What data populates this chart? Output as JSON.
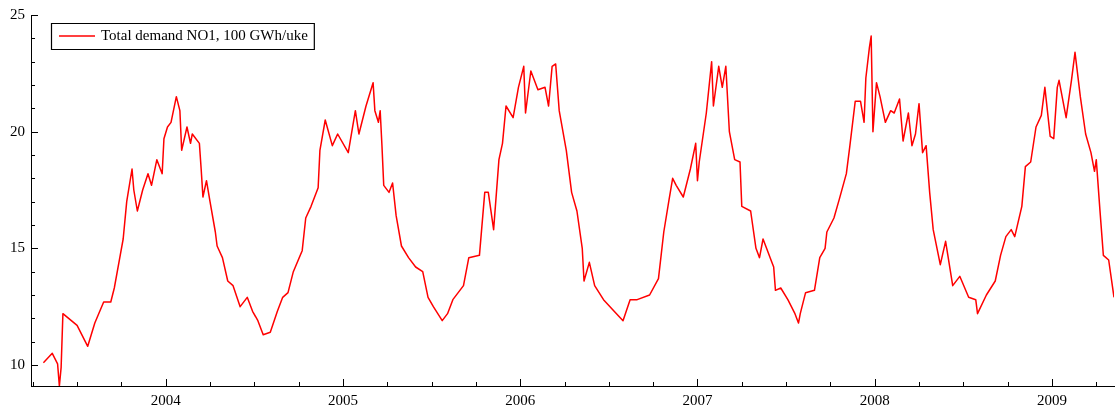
{
  "chart_data": {
    "type": "line",
    "series": [
      {
        "name": "Total demand NO1, 100 GWh/uke",
        "color": "#ff0000",
        "x": [
          2003.31,
          2003.36,
          2003.39,
          2003.4,
          2003.41,
          2003.42,
          2003.5,
          2003.56,
          2003.6,
          2003.65,
          2003.69,
          2003.71,
          2003.76,
          2003.78,
          2003.81,
          2003.82,
          2003.84,
          2003.87,
          2003.9,
          2003.92,
          2003.95,
          2003.98,
          2003.99,
          2004.01,
          2004.03,
          2004.06,
          2004.08,
          2004.09,
          2004.12,
          2004.14,
          2004.15,
          2004.19,
          2004.2,
          2004.21,
          2004.23,
          2004.25,
          2004.28,
          2004.29,
          2004.32,
          2004.35,
          2004.38,
          2004.42,
          2004.46,
          2004.49,
          2004.52,
          2004.55,
          2004.59,
          2004.63,
          2004.66,
          2004.69,
          2004.72,
          2004.77,
          2004.79,
          2004.82,
          2004.86,
          2004.87,
          2004.9,
          2004.94,
          2004.97,
          2005.03,
          2005.07,
          2005.09,
          2005.13,
          2005.17,
          2005.18,
          2005.2,
          2005.21,
          2005.22,
          2005.23,
          2005.26,
          2005.28,
          2005.3,
          2005.33,
          2005.37,
          2005.41,
          2005.45,
          2005.48,
          2005.51,
          2005.56,
          2005.59,
          2005.62,
          2005.68,
          2005.71,
          2005.77,
          2005.8,
          2005.82,
          2005.85,
          2005.88,
          2005.9,
          2005.92,
          2005.96,
          2005.99,
          2006.02,
          2006.03,
          2006.06,
          2006.1,
          2006.14,
          2006.16,
          2006.18,
          2006.2,
          2006.22,
          2006.26,
          2006.29,
          2006.32,
          2006.35,
          2006.36,
          2006.39,
          2006.42,
          2006.47,
          2006.53,
          2006.58,
          2006.62,
          2006.66,
          2006.73,
          2006.78,
          2006.81,
          2006.84,
          2006.86,
          2006.88,
          2006.92,
          2006.96,
          2006.99,
          2007.0,
          2007.01,
          2007.05,
          2007.08,
          2007.09,
          2007.12,
          2007.14,
          2007.16,
          2007.18,
          2007.21,
          2007.24,
          2007.25,
          2007.3,
          2007.33,
          2007.35,
          2007.37,
          2007.41,
          2007.43,
          2007.44,
          2007.47,
          2007.51,
          2007.55,
          2007.57,
          2007.58,
          2007.61,
          2007.66,
          2007.69,
          2007.72,
          2007.73,
          2007.77,
          2007.8,
          2007.84,
          2007.86,
          2007.89,
          2007.92,
          2007.94,
          2007.95,
          2007.97,
          2007.98,
          2007.99,
          2008.01,
          2008.03,
          2008.06,
          2008.09,
          2008.11,
          2008.14,
          2008.16,
          2008.19,
          2008.21,
          2008.23,
          2008.25,
          2008.27,
          2008.29,
          2008.31,
          2008.33,
          2008.37,
          2008.4,
          2008.44,
          2008.48,
          2008.53,
          2008.57,
          2008.58,
          2008.63,
          2008.68,
          2008.71,
          2008.74,
          2008.77,
          2008.79,
          2008.83,
          2008.85,
          2008.88,
          2008.91,
          2008.94,
          2008.96,
          2008.99,
          2009.01,
          2009.03,
          2009.04,
          2009.08,
          2009.11,
          2009.13,
          2009.16,
          2009.19,
          2009.22,
          2009.24,
          2009.25,
          2009.27,
          2009.29,
          2009.32,
          2009.35
        ],
        "values": [
          10.1,
          10.5,
          10.05,
          9.1,
          9.9,
          12.2,
          11.7,
          10.8,
          11.8,
          12.7,
          12.7,
          13.3,
          15.4,
          17.0,
          18.4,
          17.5,
          16.6,
          17.5,
          18.2,
          17.7,
          18.8,
          18.2,
          19.7,
          20.2,
          20.4,
          21.5,
          20.9,
          19.2,
          20.2,
          19.5,
          19.9,
          19.5,
          18.4,
          17.2,
          17.9,
          17.0,
          15.7,
          15.1,
          14.6,
          13.6,
          13.4,
          12.5,
          12.9,
          12.3,
          11.9,
          11.3,
          11.4,
          12.3,
          12.9,
          13.1,
          14.0,
          14.9,
          16.3,
          16.8,
          17.6,
          19.2,
          20.5,
          19.4,
          19.9,
          19.1,
          20.9,
          19.9,
          21.1,
          22.1,
          20.9,
          20.4,
          20.9,
          19.4,
          17.7,
          17.4,
          17.8,
          16.4,
          15.1,
          14.6,
          14.2,
          14.0,
          12.9,
          12.5,
          11.9,
          12.2,
          12.8,
          13.4,
          14.6,
          14.7,
          17.4,
          17.4,
          15.8,
          18.8,
          19.5,
          21.1,
          20.6,
          21.9,
          22.8,
          20.8,
          22.6,
          21.8,
          21.9,
          21.1,
          22.8,
          22.9,
          20.9,
          19.2,
          17.4,
          16.6,
          15.0,
          13.6,
          14.4,
          13.4,
          12.8,
          12.3,
          11.9,
          12.8,
          12.8,
          13.0,
          13.7,
          15.7,
          17.1,
          18.0,
          17.7,
          17.2,
          18.4,
          19.5,
          17.9,
          18.7,
          20.8,
          23.0,
          21.1,
          22.8,
          21.9,
          22.8,
          20.0,
          18.8,
          18.7,
          16.8,
          16.6,
          15.0,
          14.6,
          15.4,
          14.6,
          14.2,
          13.2,
          13.3,
          12.8,
          12.2,
          11.8,
          12.2,
          13.1,
          13.2,
          14.6,
          15.0,
          15.7,
          16.3,
          17.1,
          18.2,
          19.4,
          21.3,
          21.3,
          20.4,
          22.3,
          23.6,
          24.1,
          20.0,
          22.1,
          21.5,
          20.4,
          20.9,
          20.8,
          21.4,
          19.6,
          20.8,
          19.4,
          19.9,
          21.2,
          19.1,
          19.4,
          17.4,
          15.8,
          14.3,
          15.3,
          13.4,
          13.8,
          12.9,
          12.8,
          12.2,
          13.0,
          13.6,
          14.7,
          15.5,
          15.8,
          15.5,
          16.8,
          18.5,
          18.7,
          20.2,
          20.7,
          21.9,
          19.8,
          19.7,
          21.9,
          22.2,
          20.6,
          22.2,
          23.4,
          21.5,
          19.9,
          19.1,
          18.3,
          18.8,
          16.7,
          14.7,
          14.5,
          12.9
        ]
      }
    ],
    "xlim": [
      2003.24,
      2009.35
    ],
    "xticks": [
      {
        "value": 2003.25,
        "label": null
      },
      {
        "value": 2003.5,
        "label": null
      },
      {
        "value": 2003.75,
        "label": null
      },
      2004,
      {
        "value": 2004.25,
        "label": null
      },
      {
        "value": 2004.5,
        "label": null
      },
      {
        "value": 2004.75,
        "label": null
      },
      2005,
      {
        "value": 2005.25,
        "label": null
      },
      {
        "value": 2005.5,
        "label": null
      },
      {
        "value": 2005.75,
        "label": null
      },
      2006,
      {
        "value": 2006.25,
        "label": null
      },
      {
        "value": 2006.5,
        "label": null
      },
      {
        "value": 2006.75,
        "label": null
      },
      2007,
      {
        "value": 2007.25,
        "label": null
      },
      {
        "value": 2007.5,
        "label": null
      },
      {
        "value": 2007.75,
        "label": null
      },
      2008,
      {
        "value": 2008.25,
        "label": null
      },
      {
        "value": 2008.5,
        "label": null
      },
      {
        "value": 2008.75,
        "label": null
      },
      2009,
      {
        "value": 2009.25,
        "label": null
      }
    ],
    "ylim": [
      9.1,
      25
    ],
    "yticks": [
      10,
      {
        "value": 11,
        "label": null
      },
      {
        "value": 12,
        "label": null
      },
      {
        "value": 13,
        "label": null
      },
      {
        "value": 14,
        "label": null
      },
      15,
      {
        "value": 16,
        "label": null
      },
      {
        "value": 17,
        "label": null
      },
      {
        "value": 18,
        "label": null
      },
      {
        "value": 19,
        "label": null
      },
      20,
      {
        "value": 21,
        "label": null
      },
      {
        "value": 22,
        "label": null
      },
      {
        "value": 23,
        "label": null
      },
      {
        "value": 24,
        "label": null
      },
      25
    ],
    "legend": "top left",
    "grid": false,
    "marker": "none",
    "line_style": "solid"
  }
}
